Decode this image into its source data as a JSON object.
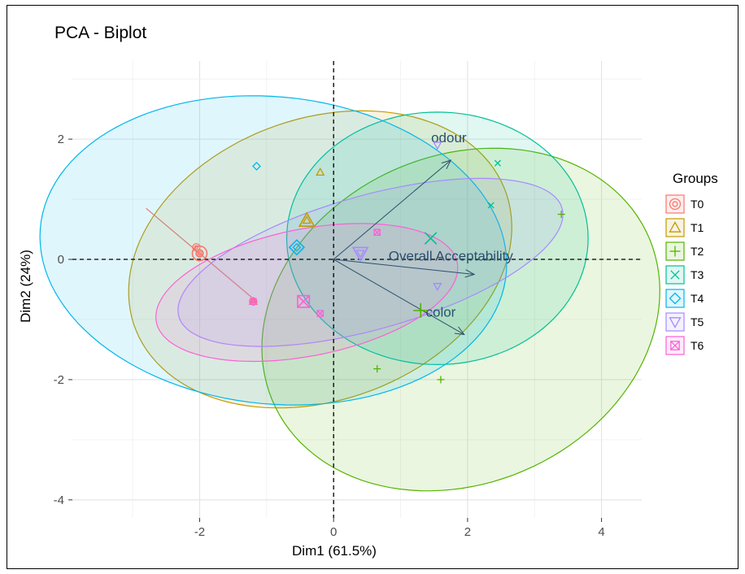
{
  "chart_data": {
    "type": "scatter",
    "subtype": "pca-biplot",
    "title": "PCA - Biplot",
    "xlabel": "Dim1 (61.5%)",
    "ylabel": "Dim2 (24%)",
    "xlim": [
      -3.9,
      4.6
    ],
    "ylim": [
      -4.3,
      3.3
    ],
    "xticks": [
      -2,
      0,
      2,
      4
    ],
    "yticks": [
      -4,
      -2,
      0,
      2
    ],
    "grid": true,
    "legend_position": "right",
    "legend_title": "Groups",
    "groups": [
      {
        "name": "T0",
        "color": "#F8766D",
        "shape": "circle",
        "points": [
          [
            -2.05,
            0.2
          ],
          [
            -2.0,
            0.1
          ],
          [
            -1.2,
            -0.7
          ]
        ],
        "centroid": [
          -2.0,
          0.1
        ],
        "ellipse": {
          "type": "line",
          "from": [
            -2.8,
            0.85
          ],
          "to": [
            -1.15,
            -0.7
          ]
        }
      },
      {
        "name": "T1",
        "color": "#C49A00",
        "shape": "triangle",
        "points": [
          [
            -0.2,
            1.45
          ],
          [
            -0.4,
            0.65
          ],
          [
            -1.2,
            -0.7
          ]
        ],
        "centroid": [
          -0.4,
          0.65
        ],
        "ellipse": {
          "cx": -0.2,
          "cy": 0.0,
          "rx": 3.0,
          "ry": 2.3,
          "angle": 28
        }
      },
      {
        "name": "T2",
        "color": "#53B400",
        "shape": "plus",
        "points": [
          [
            3.4,
            0.75
          ],
          [
            0.65,
            -1.82
          ],
          [
            1.6,
            -2.0
          ],
          [
            1.3,
            -0.85
          ]
        ],
        "centroid": [
          1.3,
          -0.85
        ],
        "ellipse": {
          "cx": 1.9,
          "cy": -1.0,
          "rx": 3.15,
          "ry": 2.65,
          "angle": 38
        }
      },
      {
        "name": "T3",
        "color": "#00C094",
        "shape": "cross",
        "points": [
          [
            2.45,
            1.6
          ],
          [
            2.35,
            0.9
          ],
          [
            1.45,
            0.35
          ]
        ],
        "centroid": [
          1.45,
          0.35
        ],
        "ellipse": {
          "cx": 1.55,
          "cy": 0.35,
          "rx": 2.25,
          "ry": 2.1,
          "angle": 0
        }
      },
      {
        "name": "T4",
        "color": "#00B6EB",
        "shape": "diamond",
        "points": [
          [
            -1.15,
            1.55
          ],
          [
            -0.55,
            0.2
          ]
        ],
        "centroid": [
          -0.55,
          0.2
        ],
        "ellipse": {
          "cx": -0.9,
          "cy": 0.15,
          "rx": 3.5,
          "ry": 2.55,
          "angle": -8
        }
      },
      {
        "name": "T5",
        "color": "#A58AFF",
        "shape": "triangle-down",
        "points": [
          [
            1.55,
            1.9
          ],
          [
            1.55,
            -0.45
          ],
          [
            0.4,
            0.1
          ]
        ],
        "centroid": [
          0.4,
          0.1
        ],
        "ellipse": {
          "cx": 0.55,
          "cy": -0.05,
          "rx": 3.0,
          "ry": 1.1,
          "angle": 18
        }
      },
      {
        "name": "T6",
        "color": "#FB61D7",
        "shape": "square-cross",
        "points": [
          [
            0.65,
            0.45
          ],
          [
            -1.2,
            -0.7
          ],
          [
            -0.2,
            -0.9
          ]
        ],
        "centroid": [
          -0.45,
          -0.7
        ],
        "ellipse": {
          "cx": -0.4,
          "cy": -0.55,
          "rx": 2.3,
          "ry": 1.05,
          "angle": 13
        }
      }
    ],
    "arrows": [
      {
        "label": "odour",
        "x": 1.75,
        "y": 1.65,
        "label_x": 1.72,
        "label_y": 1.95
      },
      {
        "label": "Overall Acceptability",
        "x": 2.1,
        "y": -0.25,
        "label_x": 1.75,
        "label_y": -0.02
      },
      {
        "label": "color",
        "x": 1.95,
        "y": -1.25,
        "label_x": 1.6,
        "label_y": -0.95
      }
    ],
    "arrow_color": "#2c4f6d"
  }
}
